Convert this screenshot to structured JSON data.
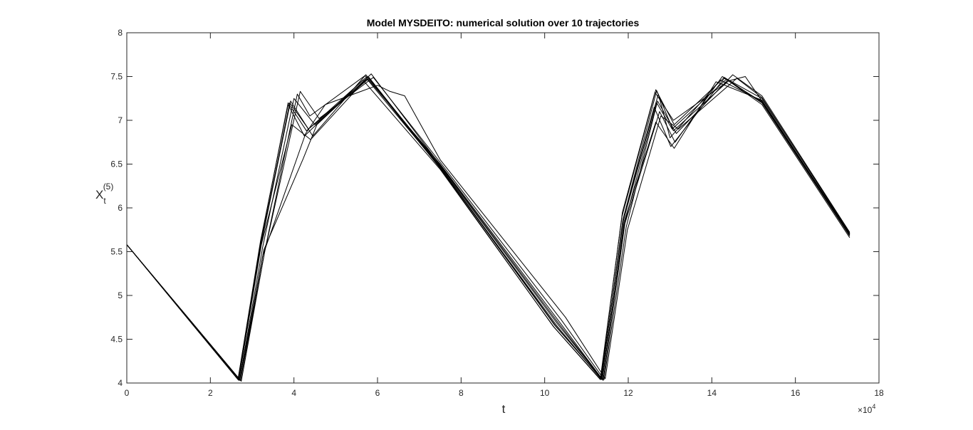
{
  "chart_data": {
    "type": "line",
    "title": "Model MYSDEITO: numerical solution over 10 trajectories",
    "xlabel": "t",
    "ylabel": {
      "base": "X",
      "sub": "t",
      "sup": "(5)"
    },
    "x_exponent": {
      "base": "×10",
      "power": "4"
    },
    "xlim": [
      0,
      18
    ],
    "ylim": [
      4,
      8
    ],
    "xticks": [
      "0",
      "2",
      "4",
      "6",
      "8",
      "10",
      "12",
      "14",
      "16",
      "18"
    ],
    "yticks": [
      "4",
      "4.5",
      "5",
      "5.5",
      "6",
      "6.5",
      "7",
      "7.5",
      "8"
    ],
    "grid": false,
    "legend": "none",
    "line_color": "#000000",
    "series": [
      {
        "x": [
          0,
          2.66,
          3.2,
          3.86,
          4.3,
          5.75,
          7.5,
          10.2,
          11.33,
          11.85,
          12.66,
          13.1,
          14.3,
          15.2,
          17.3
        ],
        "y": [
          5.58,
          4.04,
          5.6,
          7.2,
          6.88,
          7.5,
          6.45,
          4.65,
          4.04,
          5.9,
          7.35,
          6.95,
          7.49,
          7.2,
          5.68
        ]
      },
      {
        "x": [
          0,
          2.68,
          3.2,
          3.92,
          4.45,
          5.72,
          7.5,
          10.25,
          11.35,
          11.88,
          12.72,
          13.0,
          14.2,
          15.2,
          17.3
        ],
        "y": [
          5.58,
          4.03,
          5.55,
          7.22,
          6.82,
          7.52,
          6.47,
          4.66,
          4.05,
          5.85,
          7.3,
          6.8,
          7.46,
          7.22,
          5.7
        ]
      },
      {
        "x": [
          0,
          2.7,
          3.25,
          4.0,
          4.5,
          5.8,
          7.5,
          10.3,
          11.38,
          11.9,
          12.68,
          13.05,
          14.35,
          15.2,
          17.3
        ],
        "y": [
          5.58,
          4.04,
          5.55,
          7.25,
          6.95,
          7.48,
          6.48,
          4.68,
          4.04,
          5.8,
          7.2,
          6.9,
          7.47,
          7.2,
          5.68
        ]
      },
      {
        "x": [
          0,
          2.72,
          3.3,
          4.08,
          4.38,
          5.7,
          7.5,
          10.35,
          11.4,
          11.92,
          12.75,
          13.12,
          14.25,
          15.2,
          17.3
        ],
        "y": [
          5.58,
          4.03,
          5.5,
          7.3,
          7.05,
          7.51,
          6.5,
          4.7,
          4.03,
          5.82,
          7.1,
          6.75,
          7.5,
          7.25,
          5.72
        ]
      },
      {
        "x": [
          0,
          2.66,
          3.2,
          3.86,
          4.25,
          5.65,
          7.5,
          10.22,
          11.34,
          11.86,
          12.64,
          13.08,
          14.4,
          15.2,
          17.3
        ],
        "y": [
          5.58,
          4.04,
          5.62,
          7.18,
          6.82,
          7.46,
          6.44,
          4.64,
          4.04,
          5.95,
          7.32,
          7.0,
          7.45,
          7.18,
          5.66
        ]
      },
      {
        "x": [
          0,
          2.74,
          3.3,
          4.15,
          4.6,
          5.9,
          7.5,
          10.4,
          11.42,
          11.95,
          12.7,
          13.15,
          14.5,
          15.2,
          17.3
        ],
        "y": [
          5.58,
          4.02,
          5.5,
          7.33,
          7.02,
          7.49,
          6.52,
          4.72,
          4.04,
          5.78,
          7.22,
          6.85,
          7.52,
          7.28,
          5.72
        ]
      },
      {
        "x": [
          0,
          2.68,
          3.22,
          3.95,
          4.4,
          5.78,
          7.5,
          10.28,
          11.36,
          11.88,
          12.62,
          13.02,
          14.3,
          15.2,
          17.3
        ],
        "y": [
          5.58,
          4.04,
          5.58,
          6.95,
          6.78,
          7.5,
          6.46,
          4.66,
          4.04,
          5.88,
          7.15,
          6.7,
          7.48,
          7.21,
          5.69
        ]
      },
      {
        "x": [
          0,
          2.7,
          3.25,
          4.28,
          4.75,
          6.0,
          6.3,
          6.65,
          7.5,
          10.5,
          11.45,
          11.98,
          12.78,
          13.2,
          14.6,
          15.2,
          17.3
        ],
        "y": [
          5.58,
          4.03,
          5.45,
          6.85,
          7.18,
          7.4,
          7.33,
          7.28,
          6.55,
          4.75,
          4.05,
          5.75,
          7.05,
          6.9,
          7.48,
          7.26,
          5.71
        ]
      },
      {
        "x": [
          0,
          2.72,
          3.28,
          4.22,
          4.55,
          5.85,
          7.5,
          10.32,
          11.38,
          11.9,
          12.66,
          13.1,
          14.1,
          15.2,
          17.3
        ],
        "y": [
          5.58,
          4.03,
          5.52,
          6.56,
          6.95,
          7.53,
          6.49,
          4.69,
          4.04,
          5.84,
          6.98,
          6.68,
          7.44,
          7.23,
          5.7
        ]
      },
      {
        "x": [
          0,
          2.68,
          3.2,
          3.9,
          4.35,
          5.75,
          7.5,
          10.24,
          11.36,
          11.87,
          12.68,
          13.08,
          14.4,
          14.8,
          15.2,
          17.3
        ],
        "y": [
          5.58,
          4.04,
          5.57,
          7.2,
          6.9,
          7.47,
          6.46,
          4.66,
          4.05,
          5.86,
          7.34,
          6.88,
          7.45,
          7.5,
          7.22,
          5.7
        ]
      }
    ]
  }
}
